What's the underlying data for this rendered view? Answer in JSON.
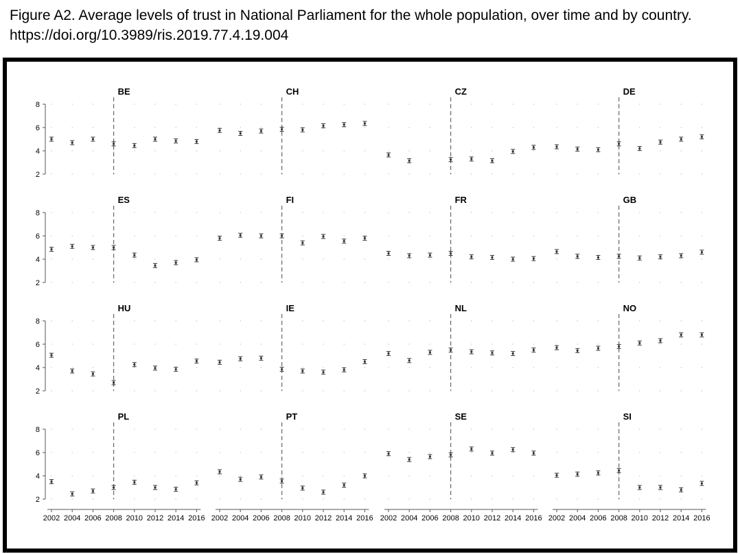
{
  "figure": {
    "title": "Figure A2. Average levels of trust in National Parliament for the whole population, over time and by country. https://doi.org/10.3989/ris.2019.77.4.19.004"
  },
  "colors": {
    "marker": "#333333",
    "refline": "#666666",
    "grid": "#aaaaaa",
    "axis": "#555555",
    "text": "#000000"
  },
  "chart_data": {
    "type": "scatter",
    "title": "Figure A2. Average levels of trust in National Parliament for the whole population, over time and by country. https://doi.org/10.3989/ris.2019.77.4.19.004",
    "error_bars": true,
    "years": [
      2002,
      2004,
      2006,
      2008,
      2010,
      2012,
      2014,
      2016
    ],
    "x_ticks": [
      "2002",
      "2004",
      "2006",
      "2008",
      "2010",
      "2012",
      "2014",
      "2016"
    ],
    "y_ticks": [
      "2",
      "4",
      "6",
      "8"
    ],
    "ylim": [
      2,
      8
    ],
    "reference_line_year": 2008,
    "layout": "4 rows x 4 columns, shared axes",
    "panels": [
      {
        "country": "BE",
        "values": [
          5.0,
          4.7,
          5.0,
          4.6,
          4.45,
          5.0,
          4.85,
          4.8
        ]
      },
      {
        "country": "CH",
        "values": [
          5.75,
          5.5,
          5.7,
          5.85,
          5.8,
          6.15,
          6.25,
          6.35
        ]
      },
      {
        "country": "CZ",
        "values": [
          3.65,
          3.15,
          null,
          3.25,
          3.3,
          3.15,
          3.95,
          4.3
        ]
      },
      {
        "country": "DE",
        "values": [
          4.35,
          4.15,
          4.1,
          4.6,
          4.2,
          4.75,
          5.0,
          5.2
        ]
      },
      {
        "country": "ES",
        "values": [
          4.85,
          5.1,
          5.0,
          5.0,
          4.35,
          3.45,
          3.7,
          3.95
        ]
      },
      {
        "country": "FI",
        "values": [
          5.8,
          6.05,
          6.0,
          6.0,
          5.4,
          5.95,
          5.55,
          5.8
        ]
      },
      {
        "country": "FR",
        "values": [
          4.5,
          4.3,
          4.35,
          4.5,
          4.2,
          4.15,
          4.0,
          4.05
        ]
      },
      {
        "country": "GB",
        "values": [
          4.65,
          4.25,
          4.15,
          4.25,
          4.1,
          4.2,
          4.3,
          4.6
        ]
      },
      {
        "country": "HU",
        "values": [
          5.05,
          3.7,
          3.45,
          2.7,
          4.25,
          3.95,
          3.85,
          4.55
        ]
      },
      {
        "country": "IE",
        "values": [
          4.45,
          4.75,
          4.8,
          3.85,
          3.7,
          3.6,
          3.8,
          4.5
        ]
      },
      {
        "country": "NL",
        "values": [
          5.2,
          4.6,
          5.3,
          5.5,
          5.35,
          5.25,
          5.2,
          5.5
        ]
      },
      {
        "country": "NO",
        "values": [
          5.7,
          5.45,
          5.65,
          5.8,
          6.1,
          6.3,
          6.8,
          6.8
        ]
      },
      {
        "country": "PL",
        "values": [
          3.5,
          2.45,
          2.7,
          3.0,
          3.45,
          3.0,
          2.85,
          3.4
        ]
      },
      {
        "country": "PT",
        "values": [
          4.35,
          3.7,
          3.9,
          3.55,
          2.95,
          2.6,
          3.2,
          4.0
        ]
      },
      {
        "country": "SE",
        "values": [
          5.9,
          5.4,
          5.65,
          5.8,
          6.3,
          5.95,
          6.25,
          5.95
        ]
      },
      {
        "country": "SI",
        "values": [
          4.05,
          4.15,
          4.25,
          4.45,
          3.0,
          3.0,
          2.8,
          3.35
        ]
      }
    ]
  }
}
